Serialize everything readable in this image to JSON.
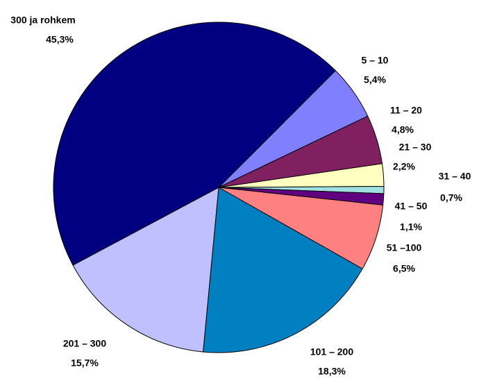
{
  "chart_data": {
    "type": "pie",
    "categories": [
      "5 – 10",
      "11 – 20",
      "21 – 30",
      "31 – 40",
      "41 – 50",
      "51 –100",
      "101 – 200",
      "201 – 300",
      "300 ja rohkem"
    ],
    "values": [
      5.4,
      4.8,
      2.2,
      0.7,
      1.1,
      6.5,
      18.3,
      15.7,
      45.3
    ],
    "value_labels": [
      "5,4%",
      "4,8%",
      "2,2%",
      "0,7%",
      "1,1%",
      "6,5%",
      "18,3%",
      "15,7%",
      "45,3%"
    ],
    "colors": [
      "#8080ff",
      "#802060",
      "#ffffc0",
      "#a0e0e0",
      "#600080",
      "#ff8080",
      "#0080c0",
      "#c0c0ff",
      "#000080"
    ]
  }
}
